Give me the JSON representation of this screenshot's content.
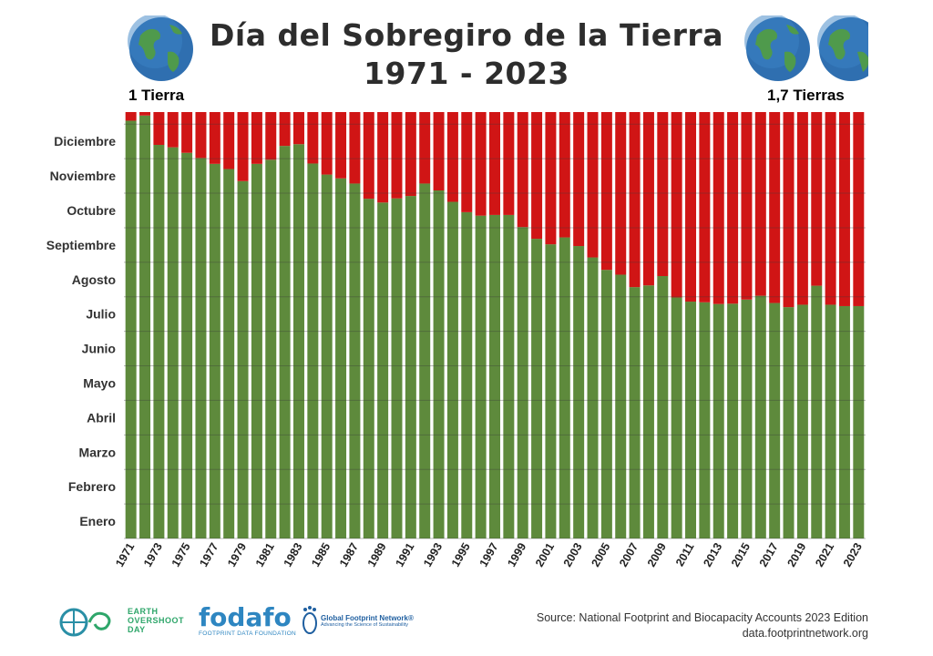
{
  "header": {
    "title_line1": "Día del Sobregiro de la Tierra",
    "title_line2": "1971 - 2023",
    "left_caption": "1 Tierra",
    "right_caption": "1,7 Tierras"
  },
  "chart_data": {
    "type": "bar",
    "stacked": true,
    "title": "Día del Sobregiro de la Tierra 1971 - 2023",
    "xlabel": "",
    "ylabel": "",
    "x": [
      1971,
      1972,
      1973,
      1974,
      1975,
      1976,
      1977,
      1978,
      1979,
      1980,
      1981,
      1982,
      1983,
      1984,
      1985,
      1986,
      1987,
      1988,
      1989,
      1990,
      1991,
      1992,
      1993,
      1994,
      1995,
      1996,
      1997,
      1998,
      1999,
      2000,
      2001,
      2002,
      2003,
      2004,
      2005,
      2006,
      2007,
      2008,
      2009,
      2010,
      2011,
      2012,
      2013,
      2014,
      2015,
      2016,
      2017,
      2018,
      2019,
      2020,
      2021,
      2022,
      2023
    ],
    "x_tick_labels": [
      "1971",
      "1973",
      "1975",
      "1977",
      "1979",
      "1981",
      "1983",
      "1985",
      "1987",
      "1989",
      "1991",
      "1993",
      "1995",
      "1997",
      "1999",
      "2001",
      "2003",
      "2005",
      "2007",
      "2009",
      "2011",
      "2013",
      "2015",
      "2017",
      "2019",
      "2021",
      "2023"
    ],
    "y_months": [
      "Enero",
      "Febrero",
      "Marzo",
      "Abril",
      "Mayo",
      "Junio",
      "Julio",
      "Agosto",
      "Septiembre",
      "Octubre",
      "Noviembre",
      "Diciembre"
    ],
    "ylim_months": [
      0,
      12.35
    ],
    "series": [
      {
        "color": "#5e8a3c",
        "values": [
          12.1,
          12.25,
          11.4,
          11.33,
          11.17,
          11.02,
          10.85,
          10.7,
          10.35,
          10.85,
          10.97,
          11.37,
          11.42,
          10.86,
          10.54,
          10.43,
          10.28,
          9.84,
          9.73,
          9.85,
          9.92,
          10.28,
          10.08,
          9.75,
          9.45,
          9.35,
          9.37,
          9.37,
          9.02,
          8.68,
          8.52,
          8.72,
          8.47,
          8.14,
          7.78,
          7.64,
          7.28,
          7.33,
          7.6,
          6.98,
          6.86,
          6.84,
          6.79,
          6.8,
          6.92,
          7.03,
          6.82,
          6.7,
          6.77,
          7.32,
          6.77,
          6.73,
          6.73
        ]
      },
      {
        "color": "#d01515",
        "values": [
          0.25,
          0.1,
          0.95,
          1.02,
          1.18,
          1.33,
          1.5,
          1.65,
          2.0,
          1.5,
          1.38,
          0.98,
          0.93,
          1.49,
          1.81,
          1.92,
          2.07,
          2.51,
          2.62,
          2.5,
          2.43,
          2.07,
          2.27,
          2.6,
          2.9,
          3.0,
          2.98,
          2.98,
          3.33,
          3.67,
          3.83,
          3.63,
          3.88,
          4.21,
          4.57,
          4.71,
          5.07,
          5.02,
          4.75,
          5.37,
          5.49,
          5.51,
          5.56,
          5.55,
          5.43,
          5.32,
          5.53,
          5.65,
          5.58,
          5.03,
          5.58,
          5.62,
          5.62
        ]
      }
    ],
    "grid": true,
    "legend": "none"
  },
  "footer": {
    "source_line1": "Source: National Footprint and Biocapacity Accounts 2023 Edition",
    "source_line2": "data.footprintnetwork.org",
    "logo_eod": [
      "EARTH",
      "OVERSHOOT",
      "DAY"
    ],
    "logo_fodafo": "fodafo",
    "logo_fodafo_sub": "FOOTPRINT DATA FOUNDATION",
    "logo_gfn": "Global Footprint Network®",
    "logo_gfn_sub": "Advancing the Science of Sustainability"
  },
  "colors": {
    "overshoot_green": "#5e8a3c",
    "overshoot_red": "#d01515",
    "ocean_blue": "#2f6fb0",
    "land_green": "#4f9a4c"
  }
}
